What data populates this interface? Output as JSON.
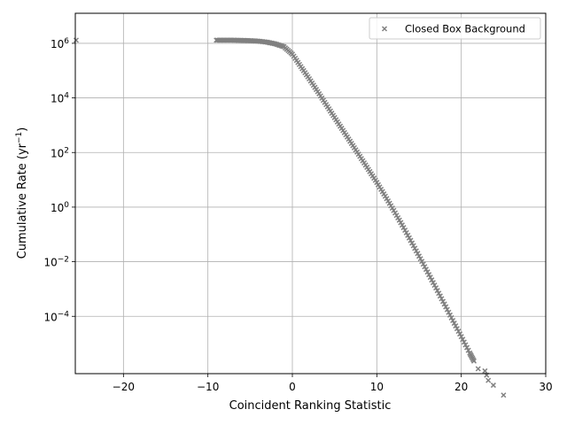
{
  "chart_data": {
    "type": "scatter",
    "title": "",
    "xlabel": "Coincident Ranking Statistic",
    "ylabel": "Cumulative Rate (yr⁻¹)",
    "ylabel_parts": {
      "base": "Cumulative Rate (yr",
      "sup": "−1",
      "close": ")"
    },
    "xlim": [
      -25.7,
      30
    ],
    "ylim_log10": [
      -6.1,
      7.1
    ],
    "yscale": "log",
    "grid": true,
    "legend_position": "upper right",
    "x_ticks": [
      {
        "value": -20,
        "label": "−20"
      },
      {
        "value": -10,
        "label": "−10"
      },
      {
        "value": 0,
        "label": "0"
      },
      {
        "value": 10,
        "label": "10"
      },
      {
        "value": 20,
        "label": "20"
      },
      {
        "value": 30,
        "label": "30"
      }
    ],
    "y_ticks": [
      {
        "exp": -4,
        "base": "10",
        "sup": "−4"
      },
      {
        "exp": -2,
        "base": "10",
        "sup": "−2"
      },
      {
        "exp": 0,
        "base": "10",
        "sup": "0"
      },
      {
        "exp": 2,
        "base": "10",
        "sup": "2"
      },
      {
        "exp": 4,
        "base": "10",
        "sup": "4"
      },
      {
        "exp": 6,
        "base": "10",
        "sup": "6"
      }
    ],
    "series": [
      {
        "name": "Closed Box Background",
        "marker": "x",
        "color": "#808080",
        "x": [
          -25.6,
          -9.0,
          -8.0,
          -7.0,
          -6.0,
          -5.0,
          -4.0,
          -3.0,
          -2.0,
          -1.0,
          0.0,
          1.0,
          2.0,
          3.0,
          4.0,
          5.0,
          6.0,
          7.0,
          8.0,
          9.0,
          10.0,
          11.0,
          12.0,
          13.0,
          14.0,
          15.0,
          16.0,
          17.0,
          18.0,
          19.0,
          20.0,
          21.0,
          21.5,
          22.0,
          22.8,
          23.0,
          23.2,
          23.8,
          25.0
        ],
        "y": [
          1300000.0,
          1300000.0,
          1300000.0,
          1300000.0,
          1280000.0,
          1250000.0,
          1200000.0,
          1100000.0,
          950000.0,
          750000.0,
          400000.0,
          140000.0,
          50000.0,
          17000.0,
          5700.0,
          1900.0,
          640,
          215,
          72,
          24,
          8.0,
          2.5,
          0.75,
          0.22,
          0.06,
          0.016,
          0.0042,
          0.0011,
          0.00028,
          7e-05,
          1.8e-05,
          4.5e-06,
          2.3e-06,
          1.2e-06,
          1e-06,
          7e-07,
          4.5e-07,
          3e-07,
          1.3e-07
        ]
      }
    ]
  }
}
